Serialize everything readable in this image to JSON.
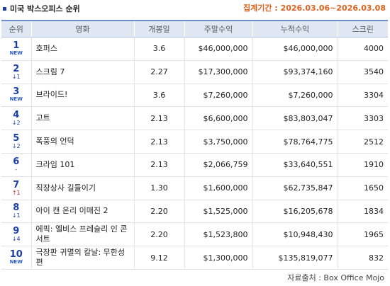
{
  "header": {
    "title": "미국 박스오피스 순위",
    "period_label": "집계기간 :",
    "period_value": "2026.03.06~2026.03.08"
  },
  "table": {
    "columns": [
      "순위",
      "영화",
      "개봉일",
      "주말수익",
      "누적수익",
      "스크린"
    ],
    "rows": [
      {
        "rank": "1",
        "move": "NEW",
        "move_type": "new",
        "movie": "호퍼스",
        "release": "3.6",
        "weekend": "$46,000,000",
        "total": "$46,000,000",
        "screens": "4000"
      },
      {
        "rank": "2",
        "move": "↓1",
        "move_type": "down",
        "movie": "스크림 7",
        "release": "2.27",
        "weekend": "$17,300,000",
        "total": "$93,374,160",
        "screens": "3540"
      },
      {
        "rank": "3",
        "move": "NEW",
        "move_type": "new",
        "movie": "브라이드!",
        "release": "3.6",
        "weekend": "$7,260,000",
        "total": "$7,260,000",
        "screens": "3304"
      },
      {
        "rank": "4",
        "move": "↓2",
        "move_type": "down",
        "movie": "고트",
        "release": "2.13",
        "weekend": "$6,600,000",
        "total": "$83,803,047",
        "screens": "3303"
      },
      {
        "rank": "5",
        "move": "↓2",
        "move_type": "down",
        "movie": "폭풍의 언덕",
        "release": "2.13",
        "weekend": "$3,750,000",
        "total": "$78,764,775",
        "screens": "2512"
      },
      {
        "rank": "6",
        "move": "-",
        "move_type": "same",
        "movie": "크라임 101",
        "release": "2.13",
        "weekend": "$2,066,759",
        "total": "$33,640,551",
        "screens": "1910"
      },
      {
        "rank": "7",
        "move": "↑1",
        "move_type": "up",
        "movie": "직장상사 길들이기",
        "release": "1.30",
        "weekend": "$1,600,000",
        "total": "$62,735,847",
        "screens": "1650"
      },
      {
        "rank": "8",
        "move": "↓1",
        "move_type": "down",
        "movie": "아이 캔 온리 이매진 2",
        "release": "2.20",
        "weekend": "$1,525,000",
        "total": "$16,205,678",
        "screens": "1834"
      },
      {
        "rank": "9",
        "move": "↓4",
        "move_type": "down",
        "movie": "에픽: 엘비스 프레슬리 인 콘서트",
        "release": "2.20",
        "weekend": "$1,523,800",
        "total": "$10,948,430",
        "screens": "1965"
      },
      {
        "rank": "10",
        "move": "NEW",
        "move_type": "new",
        "movie": "극장판 귀멸의 칼날: 무한성편",
        "release": "9.12",
        "weekend": "$1,300,000",
        "total": "$135,819,077",
        "screens": "832"
      }
    ]
  },
  "footer": {
    "source": "자료출처 : Box Office Mojo"
  }
}
